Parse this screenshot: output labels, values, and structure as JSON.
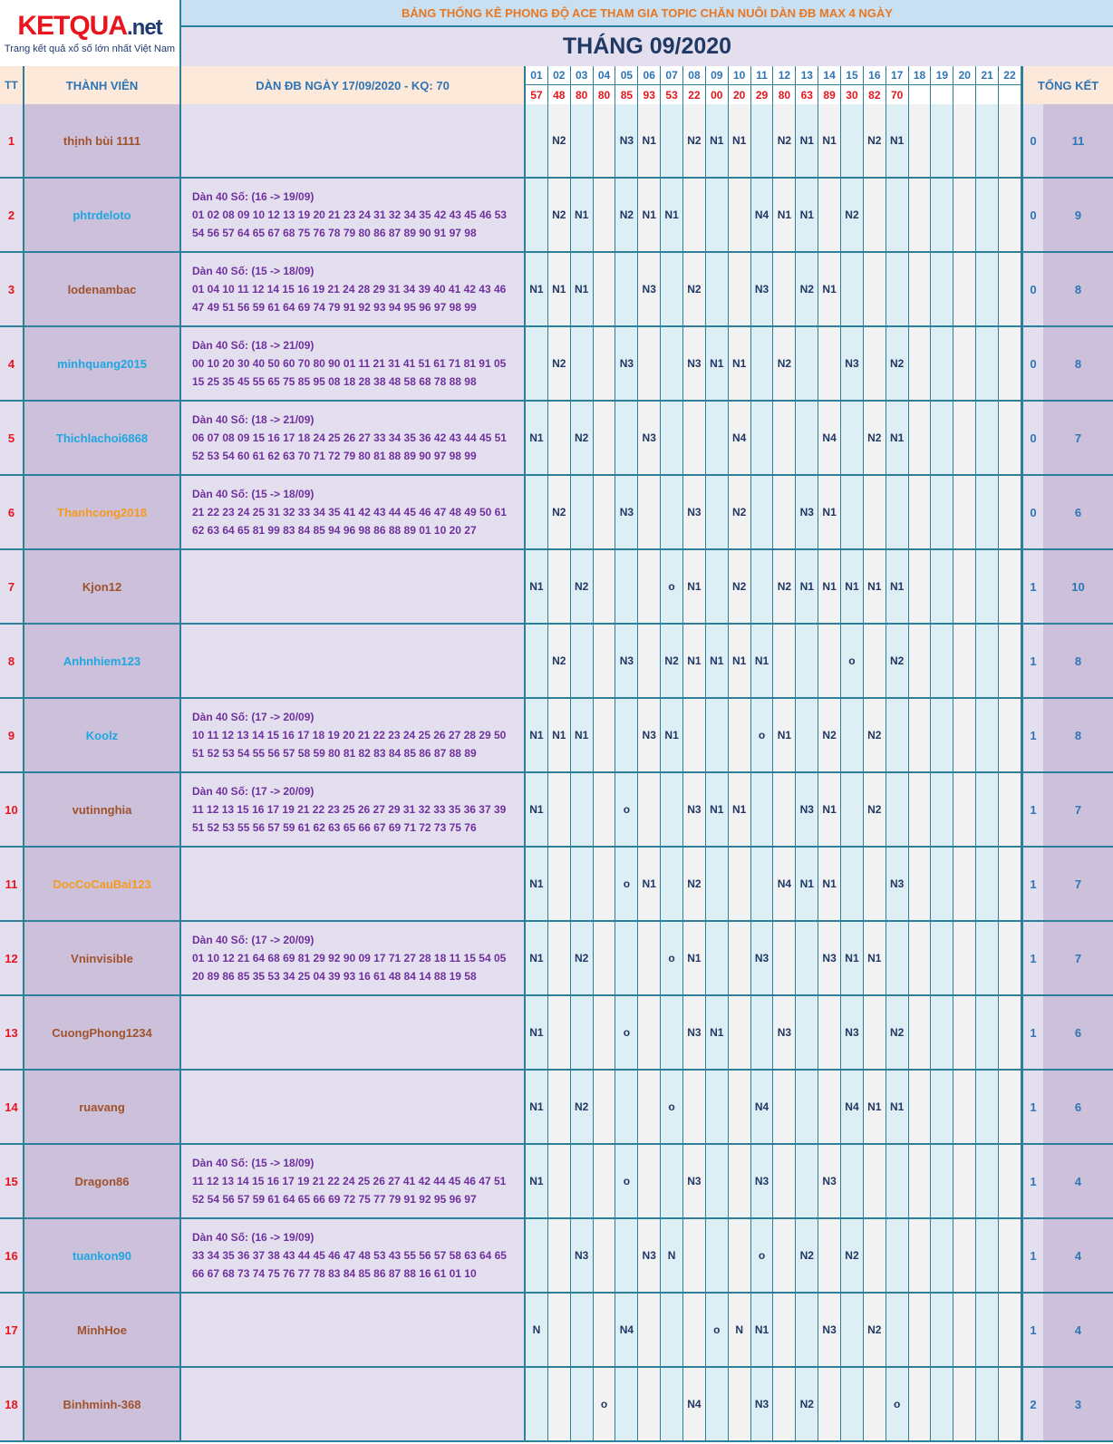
{
  "logo": {
    "name": "KETQUA",
    "suffix": ".net",
    "tagline": "Trang kết quả xổ số lớn nhất Việt Nam"
  },
  "header": {
    "subtitle": "BẢNG THỐNG KÊ PHONG ĐỘ ACE THAM GIA TOPIC CHĂN NUÔI DÀN ĐB MAX 4 NGÀY",
    "month": "THÁNG 09/2020",
    "col_tt": "TT",
    "col_member": "THÀNH VIÊN",
    "col_dan": "DÀN ĐB NGÀY 17/09/2020 - KQ: 70",
    "col_total": "TỔNG KẾT"
  },
  "days": [
    "01",
    "02",
    "03",
    "04",
    "05",
    "06",
    "07",
    "08",
    "09",
    "10",
    "11",
    "12",
    "13",
    "14",
    "15",
    "16",
    "17",
    "18",
    "19",
    "20",
    "21",
    "22"
  ],
  "results": [
    "57",
    "48",
    "80",
    "80",
    "85",
    "93",
    "53",
    "22",
    "00",
    "20",
    "29",
    "80",
    "63",
    "89",
    "30",
    "82",
    "70",
    "",
    "",
    "",
    "",
    ""
  ],
  "colors": {
    "rank": "#e8141e",
    "brown": "#a0522d",
    "blue": "#1ea7e1",
    "orange": "#f59a1e",
    "purple": "#7030a0",
    "navy": "#1f3864",
    "total": "#2e75b6",
    "border": "#2d7f9a"
  },
  "rows": [
    {
      "tt": "1",
      "name": "thịnh bùi 1111",
      "name_color": "brown",
      "dan_title": "",
      "dan_line1": "",
      "dan_line2": "",
      "marks": [
        "",
        "N2",
        "",
        "",
        "N3",
        "N1",
        "",
        "N2",
        "N1",
        "N1",
        "",
        "N2",
        "N1",
        "N1",
        "",
        "N2",
        "N1",
        "",
        "",
        "",
        "",
        ""
      ],
      "total_a": "0",
      "total_b": "11"
    },
    {
      "tt": "2",
      "name": "phtrdeloto",
      "name_color": "blue",
      "dan_title": "Dàn 40 Số: (16 -> 19/09)",
      "dan_line1": "01 02 08 09 10 12 13 19 20 21 23 24 31 32 34 35 42 43 45 46 53",
      "dan_line2": "54 56 57 64 65 67 68 75 76 78 79 80 86 87 89 90 91 97 98",
      "marks": [
        "",
        "N2",
        "N1",
        "",
        "N2",
        "N1",
        "N1",
        "",
        "",
        "",
        "N4",
        "N1",
        "N1",
        "",
        "N2",
        "",
        "",
        "",
        "",
        "",
        "",
        ""
      ],
      "total_a": "0",
      "total_b": "9"
    },
    {
      "tt": "3",
      "name": "lodenambac",
      "name_color": "brown",
      "dan_title": "Dàn 40 Số: (15 -> 18/09)",
      "dan_line1": "01 04 10 11 12 14 15 16 19 21 24 28 29 31 34 39 40 41 42 43 46",
      "dan_line2": "47 49 51 56 59 61 64 69 74 79 91 92 93 94 95 96 97 98 99",
      "marks": [
        "N1",
        "N1",
        "N1",
        "",
        "",
        "N3",
        "",
        "N2",
        "",
        "",
        "N3",
        "",
        "N2",
        "N1",
        "",
        "",
        "",
        "",
        "",
        "",
        "",
        ""
      ],
      "total_a": "0",
      "total_b": "8"
    },
    {
      "tt": "4",
      "name": "minhquang2015",
      "name_color": "blue",
      "dan_title": "Dàn 40 Số: (18 -> 21/09)",
      "dan_line1": "00 10 20 30 40 50 60 70 80 90 01 11 21 31 41 51 61 71 81 91 05",
      "dan_line2": "15 25 35 45 55 65 75 85 95 08 18 28 38 48 58 68 78 88 98",
      "marks": [
        "",
        "N2",
        "",
        "",
        "N3",
        "",
        "",
        "N3",
        "N1",
        "N1",
        "",
        "N2",
        "",
        "",
        "N3",
        "",
        "N2",
        "",
        "",
        "",
        "",
        ""
      ],
      "total_a": "0",
      "total_b": "8"
    },
    {
      "tt": "5",
      "name": "Thichlachoi6868",
      "name_color": "blue",
      "dan_title": "Dàn 40 Số: (18 -> 21/09)",
      "dan_line1": "06 07 08 09 15 16 17 18 24 25 26 27 33 34 35 36 42 43 44 45 51",
      "dan_line2": "52 53 54 60 61 62 63 70 71 72 79 80 81 88 89 90 97 98 99",
      "marks": [
        "N1",
        "",
        "N2",
        "",
        "",
        "N3",
        "",
        "",
        "",
        "N4",
        "",
        "",
        "",
        "N4",
        "",
        "N2",
        "N1",
        "",
        "",
        "",
        "",
        ""
      ],
      "total_a": "0",
      "total_b": "7"
    },
    {
      "tt": "6",
      "name": "Thanhcong2018",
      "name_color": "orange",
      "dan_title": "Dàn 40 Số: (15 -> 18/09)",
      "dan_line1": "21 22 23 24 25 31 32 33 34 35 41 42 43 44 45 46 47 48 49 50 61",
      "dan_line2": "62 63 64 65 81 99 83 84 85 94 96 98 86 88 89 01 10 20 27",
      "marks": [
        "",
        "N2",
        "",
        "",
        "N3",
        "",
        "",
        "N3",
        "",
        "N2",
        "",
        "",
        "N3",
        "N1",
        "",
        "",
        "",
        "",
        "",
        "",
        "",
        ""
      ],
      "total_a": "0",
      "total_b": "6"
    },
    {
      "tt": "7",
      "name": "Kjon12",
      "name_color": "brown",
      "dan_title": "",
      "dan_line1": "",
      "dan_line2": "",
      "marks": [
        "N1",
        "",
        "N2",
        "",
        "",
        "",
        "o",
        "N1",
        "",
        "N2",
        "",
        "N2",
        "N1",
        "N1",
        "N1",
        "N1",
        "N1",
        "",
        "",
        "",
        "",
        ""
      ],
      "total_a": "1",
      "total_b": "10"
    },
    {
      "tt": "8",
      "name": "Anhnhiem123",
      "name_color": "blue",
      "dan_title": "",
      "dan_line1": "",
      "dan_line2": "",
      "marks": [
        "",
        "N2",
        "",
        "",
        "N3",
        "",
        "N2",
        "N1",
        "N1",
        "N1",
        "N1",
        "",
        "",
        "",
        "o",
        "",
        "N2",
        "",
        "",
        "",
        "",
        ""
      ],
      "total_a": "1",
      "total_b": "8"
    },
    {
      "tt": "9",
      "name": "Koolz",
      "name_color": "blue",
      "dan_title": "Dàn 40 Số: (17 -> 20/09)",
      "dan_line1": "10 11 12 13 14 15 16 17 18 19 20 21 22 23 24 25 26 27 28 29 50",
      "dan_line2": "51 52 53 54 55 56 57 58 59 80 81 82 83 84 85 86 87 88 89",
      "marks": [
        "N1",
        "N1",
        "N1",
        "",
        "",
        "N3",
        "N1",
        "",
        "",
        "",
        "o",
        "N1",
        "",
        "N2",
        "",
        "N2",
        "",
        "",
        "",
        "",
        "",
        ""
      ],
      "total_a": "1",
      "total_b": "8"
    },
    {
      "tt": "10",
      "name": "vutinnghia",
      "name_color": "brown",
      "dan_title": "Dàn 40 Số: (17 -> 20/09)",
      "dan_line1": "11 12 13 15 16 17 19 21 22 23 25 26 27 29 31 32 33 35 36 37 39",
      "dan_line2": "51 52 53 55 56 57 59 61 62 63 65 66 67 69 71 72 73 75 76",
      "marks": [
        "N1",
        "",
        "",
        "",
        "o",
        "",
        "",
        "N3",
        "N1",
        "N1",
        "",
        "",
        "N3",
        "N1",
        "",
        "N2",
        "",
        "",
        "",
        "",
        "",
        ""
      ],
      "total_a": "1",
      "total_b": "7"
    },
    {
      "tt": "11",
      "name": "DocCoCauBai123",
      "name_color": "orange",
      "dan_title": "",
      "dan_line1": "",
      "dan_line2": "",
      "marks": [
        "N1",
        "",
        "",
        "",
        "o",
        "N1",
        "",
        "N2",
        "",
        "",
        "",
        "N4",
        "N1",
        "N1",
        "",
        "",
        "N3",
        "",
        "",
        "",
        "",
        ""
      ],
      "total_a": "1",
      "total_b": "7"
    },
    {
      "tt": "12",
      "name": "Vninvisible",
      "name_color": "brown",
      "dan_title": "Dàn 40 Số: (17 -> 20/09)",
      "dan_line1": "01 10 12 21 64 68 69 81 29 92 90 09 17 71 27 28 18 11 15 54 05",
      "dan_line2": "20 89 86 85 35 53 34 25 04 39 93 16 61 48 84 14 88 19 58",
      "marks": [
        "N1",
        "",
        "N2",
        "",
        "",
        "",
        "o",
        "N1",
        "",
        "",
        "N3",
        "",
        "",
        "N3",
        "N1",
        "N1",
        "",
        "",
        "",
        "",
        "",
        ""
      ],
      "total_a": "1",
      "total_b": "7"
    },
    {
      "tt": "13",
      "name": "CuongPhong1234",
      "name_color": "brown",
      "dan_title": "",
      "dan_line1": "",
      "dan_line2": "",
      "marks": [
        "N1",
        "",
        "",
        "",
        "o",
        "",
        "",
        "N3",
        "N1",
        "",
        "",
        "N3",
        "",
        "",
        "N3",
        "",
        "N2",
        "",
        "",
        "",
        "",
        ""
      ],
      "total_a": "1",
      "total_b": "6"
    },
    {
      "tt": "14",
      "name": "ruavang",
      "name_color": "brown",
      "dan_title": "",
      "dan_line1": "",
      "dan_line2": "",
      "marks": [
        "N1",
        "",
        "N2",
        "",
        "",
        "",
        "o",
        "",
        "",
        "",
        "N4",
        "",
        "",
        "",
        "N4",
        "N1",
        "N1",
        "",
        "",
        "",
        "",
        ""
      ],
      "total_a": "1",
      "total_b": "6"
    },
    {
      "tt": "15",
      "name": "Dragon86",
      "name_color": "brown",
      "dan_title": "Dàn 40 Số: (15 -> 18/09)",
      "dan_line1": "11 12 13 14 15 16 17 19 21 22 24 25 26 27 41 42 44 45 46 47 51",
      "dan_line2": "52 54 56 57 59 61 64 65 66 69 72 75 77 79 91 92 95 96 97",
      "marks": [
        "N1",
        "",
        "",
        "",
        "o",
        "",
        "",
        "N3",
        "",
        "",
        "N3",
        "",
        "",
        "N3",
        "",
        "",
        "",
        "",
        "",
        "",
        "",
        ""
      ],
      "total_a": "1",
      "total_b": "4"
    },
    {
      "tt": "16",
      "name": "tuankon90",
      "name_color": "blue",
      "dan_title": "Dàn 40 Số: (16 -> 19/09)",
      "dan_line1": "33 34 35 36 37 38 43 44 45 46 47 48 53 43 55 56 57 58 63 64 65",
      "dan_line2": "66 67 68 73 74 75 76 77 78 83 84 85 86 87 88 16 61 01 10",
      "marks": [
        "",
        "",
        "N3",
        "",
        "",
        "N3",
        "N",
        "",
        "",
        "",
        "o",
        "",
        "N2",
        "",
        "N2",
        "",
        "",
        "",
        "",
        "",
        "",
        ""
      ],
      "total_a": "1",
      "total_b": "4"
    },
    {
      "tt": "17",
      "name": "MinhHoe",
      "name_color": "brown",
      "dan_title": "",
      "dan_line1": "",
      "dan_line2": "",
      "marks": [
        "N",
        "",
        "",
        "",
        "N4",
        "",
        "",
        "",
        "o",
        "N",
        "N1",
        "",
        "",
        "N3",
        "",
        "N2",
        "",
        "",
        "",
        "",
        "",
        ""
      ],
      "total_a": "1",
      "total_b": "4"
    },
    {
      "tt": "18",
      "name": "Binhminh-368",
      "name_color": "brown",
      "dan_title": "",
      "dan_line1": "",
      "dan_line2": "",
      "marks": [
        "",
        "",
        "",
        "o",
        "",
        "",
        "",
        "N4",
        "",
        "",
        "N3",
        "",
        "N2",
        "",
        "",
        "",
        "o",
        "",
        "",
        "",
        "",
        ""
      ],
      "total_a": "2",
      "total_b": "3"
    }
  ]
}
